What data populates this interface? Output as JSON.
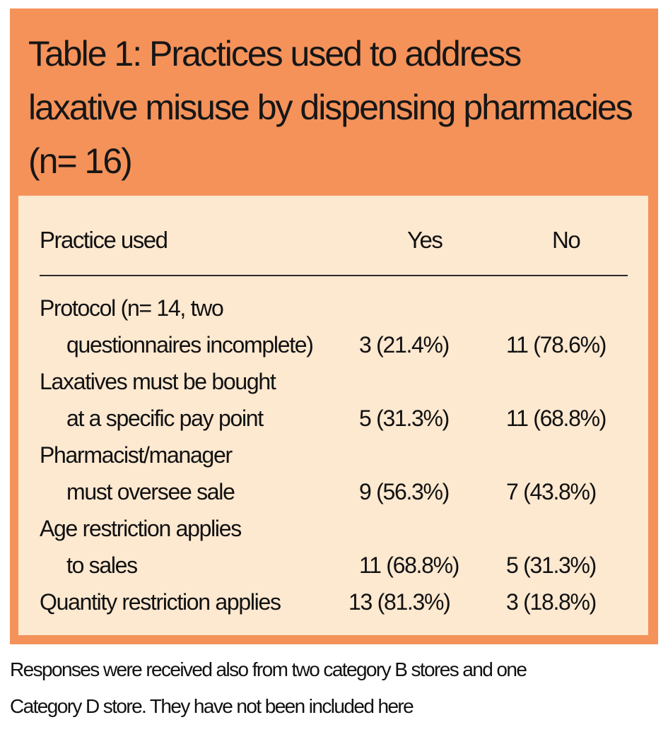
{
  "title": "Table 1: Practices used to address laxative misuse by dispensing pharmacies (n= 16)",
  "columns": {
    "practice": "Practice used",
    "yes": "Yes",
    "no": "No"
  },
  "rows": [
    {
      "line1": "Protocol (n= 14, two",
      "line2": "questionnaires incomplete)",
      "yes": "3 (21.4%)",
      "no": "11 (78.6%)"
    },
    {
      "line1": "Laxatives must be bought",
      "line2": "at a specific pay point",
      "yes": "5 (31.3%)",
      "no": "11 (68.8%)"
    },
    {
      "line1": "Pharmacist/manager",
      "line2": "must oversee sale",
      "yes": "9 (56.3%)",
      "no": "7 (43.8%)"
    },
    {
      "line1": "Age restriction applies",
      "line2": "to sales",
      "yes": "11 (68.8%)",
      "no": "5 (31.3%)"
    },
    {
      "line1": "Quantity restriction applies",
      "yes": "13 (81.3%)",
      "no": "3 (18.8%)"
    }
  ],
  "footnote": {
    "line1": "Responses were received also from two category B stores and one",
    "line2": "Category D store. They have not been included here"
  },
  "colors": {
    "header_background": "#f4925a",
    "body_background": "#fde8d0",
    "text": "#111111"
  }
}
